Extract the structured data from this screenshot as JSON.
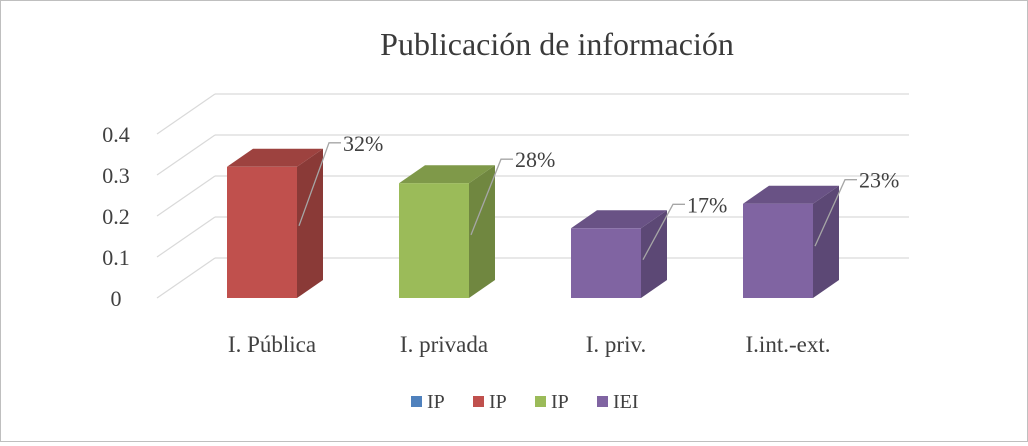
{
  "chart_data": {
    "type": "bar",
    "title": "Publicación de información",
    "categories": [
      "I. Pública",
      "I. privada",
      "I. priv.",
      "I.int.-ext."
    ],
    "values": [
      0.32,
      0.28,
      0.17,
      0.23
    ],
    "data_labels": [
      "32%",
      "28%",
      "17%",
      "23%"
    ],
    "bar_colors": [
      "#c0504d",
      "#9bbb59",
      "#8064a2",
      "#8064a2"
    ],
    "y_ticks": [
      "0",
      "0.1",
      "0.2",
      "0.3",
      "0.4"
    ],
    "ylim": [
      0,
      0.4
    ],
    "grid": true,
    "legend_position": "bottom",
    "legend": [
      {
        "label": "IP",
        "color": "#4f81bd"
      },
      {
        "label": "IP",
        "color": "#c0504d"
      },
      {
        "label": "IP",
        "color": "#9bbb59"
      },
      {
        "label": "IEI",
        "color": "#8064a2"
      }
    ]
  }
}
